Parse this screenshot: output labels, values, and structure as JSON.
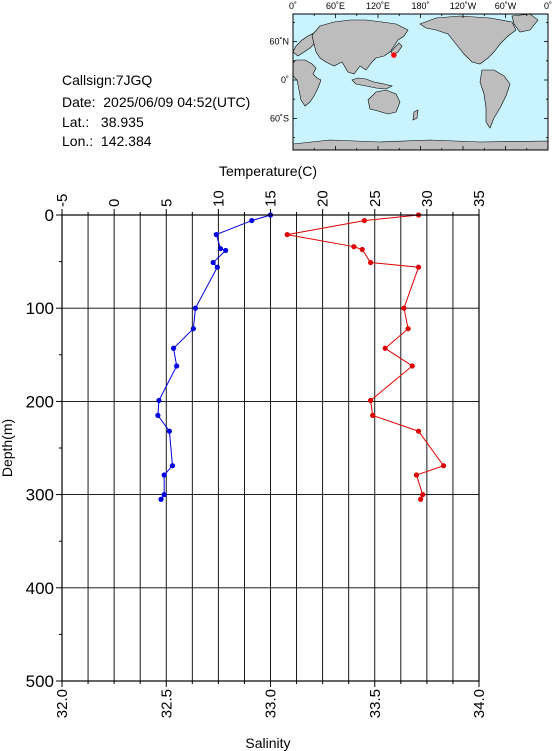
{
  "info": {
    "callsign": "Callsign:7JGQ",
    "date": "Date:  2025/06/09 04:52(UTC)",
    "lat_label": "Lat.:",
    "lat_value": "38.935",
    "lon_label": "Lon.:",
    "lon_value": "142.384"
  },
  "map": {
    "top_ticks": [
      "0˚",
      "60˚E",
      "120˚E",
      "180˚",
      "120˚W",
      "60˚W",
      "0˚"
    ],
    "left_ticks": [
      "60˚N",
      "0˚",
      "60˚S"
    ],
    "ocean_color": "#c9f4ff",
    "land_color": "#bdbdbd",
    "marker_color": "#ff0000",
    "marker_lon": 142.384,
    "marker_lat": 38.935
  },
  "chart_data": {
    "type": "line",
    "xlabel_top": "Temperature(C)",
    "xlabel_bottom": "Salinity",
    "ylabel": "Depth(m)",
    "ylim": [
      0,
      500
    ],
    "y_ticks": [
      "0",
      "100",
      "200",
      "300",
      "400",
      "500"
    ],
    "temperature": {
      "xlim": [
        -5,
        35
      ],
      "ticks": [
        "-5",
        "0",
        "5",
        "10",
        "15",
        "20",
        "25",
        "30",
        "35"
      ],
      "color": "#0000e0",
      "depth": [
        0,
        6,
        21,
        36,
        38,
        51,
        56,
        100,
        122,
        143,
        162,
        199,
        215,
        232,
        269,
        279,
        300,
        305
      ],
      "values": [
        15.0,
        13.2,
        9.8,
        10.2,
        10.7,
        9.5,
        9.9,
        7.8,
        7.6,
        5.7,
        6.0,
        4.3,
        4.2,
        5.3,
        5.6,
        4.8,
        4.8,
        4.5
      ]
    },
    "salinity": {
      "xlim": [
        32.0,
        34.0
      ],
      "ticks": [
        "32.0",
        "32.5",
        "33.0",
        "33.5",
        "34.0"
      ],
      "color": "#e00000",
      "depth": [
        0,
        6,
        21,
        34,
        37,
        51,
        56,
        100,
        122,
        143,
        162,
        199,
        215,
        232,
        269,
        279,
        300,
        305
      ],
      "values": [
        33.71,
        33.45,
        33.08,
        33.4,
        33.44,
        33.48,
        33.71,
        33.64,
        33.66,
        33.55,
        33.68,
        33.48,
        33.49,
        33.71,
        33.83,
        33.7,
        33.73,
        33.72
      ]
    }
  }
}
